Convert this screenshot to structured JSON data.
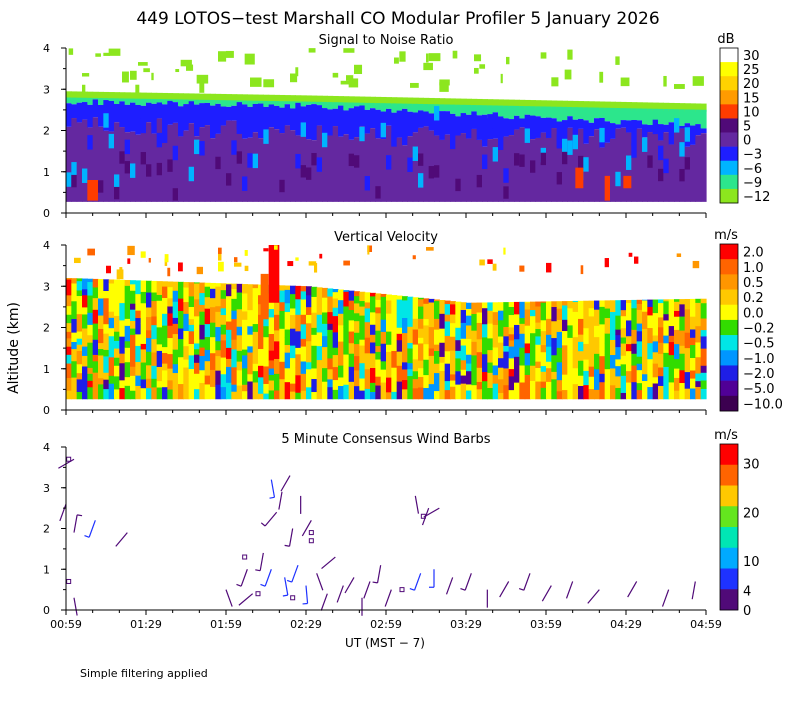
{
  "title": "449 LOTOS−test Marshall CO Modular Profiler  5 January 2026",
  "footnote": "Simple filtering applied",
  "ylabel": "Altitude (km)",
  "xlabel": "UT  (MST − 7)",
  "time_ticks": [
    "00:59",
    "01:29",
    "01:59",
    "02:29",
    "02:59",
    "03:29",
    "03:59",
    "04:29",
    "04:59"
  ],
  "chart_data": [
    {
      "type": "heatmap",
      "title": "Signal to Noise Ratio",
      "xlabel": "UT  (MST − 7)",
      "ylabel": "Altitude (km)",
      "x_range": [
        "00:59",
        "04:59"
      ],
      "ylim": [
        0,
        4
      ],
      "y_ticks": [
        0,
        1,
        2,
        3,
        4
      ],
      "colorbar": {
        "unit": "dB",
        "labels": [
          "30",
          "25",
          "20",
          "15",
          "10",
          "5",
          "0",
          "−3",
          "−6",
          "−9",
          "−12"
        ],
        "colors": [
          "#ffffff",
          "#ffff00",
          "#ffd200",
          "#ff9b00",
          "#ff3c00",
          "#500a78",
          "#6428a0",
          "#1e1eff",
          "#00b4ff",
          "#2ce68c",
          "#8ce61e"
        ]
      },
      "layers": [
        {
          "name": "noise floor top",
          "approx_top_km": {
            "00:59": 2.9,
            "02:29": 2.8,
            "04:59": 2.6
          }
        },
        {
          "name": "blue layer top",
          "approx_top_km": {
            "00:59": 2.7,
            "02:29": 2.6,
            "04:59": 2.1
          }
        },
        {
          "name": "purple layer top",
          "approx_top_km": {
            "00:59": 2.2,
            "02:29": 1.9,
            "04:59": 1.8
          }
        }
      ]
    },
    {
      "type": "heatmap",
      "title": "Vertical Velocity",
      "xlabel": "UT  (MST − 7)",
      "ylabel": "Altitude (km)",
      "x_range": [
        "00:59",
        "04:59"
      ],
      "ylim": [
        0,
        4
      ],
      "y_ticks": [
        0,
        1,
        2,
        3,
        4
      ],
      "colorbar": {
        "unit": "m/s",
        "labels": [
          "2.0",
          "1.0",
          "0.5",
          "0.2",
          "0.0",
          "−0.2",
          "−0.5",
          "−1.0",
          "−2.0",
          "−5.0",
          "−10.0"
        ],
        "colors": [
          "#ff0000",
          "#ff6400",
          "#ff9600",
          "#ffc800",
          "#ffff00",
          "#32dc00",
          "#00e6e6",
          "#0096ff",
          "#1e1ee6",
          "#500096",
          "#3c0050"
        ]
      },
      "approx_data_top_km": {
        "00:59": 3.2,
        "02:29": 3.0,
        "03:29": 2.6,
        "04:59": 2.7
      }
    },
    {
      "type": "scatter",
      "title": "5 Minute Consensus Wind Barbs",
      "xlabel": "UT  (MST − 7)",
      "ylabel": "Altitude (km)",
      "x_range": [
        "00:59",
        "04:59"
      ],
      "ylim": [
        0,
        4
      ],
      "y_ticks": [
        0,
        1,
        2,
        3,
        4
      ],
      "colorbar": {
        "unit": "m/s",
        "labels": [
          "30",
          "20",
          "10",
          "4",
          "0"
        ],
        "label_values": [
          30,
          20,
          10,
          4,
          0
        ],
        "vmax": 34,
        "colors": [
          "#ff0000",
          "#ff6400",
          "#ffc800",
          "#64e61e",
          "#00e6b4",
          "#00aaff",
          "#1e32ff",
          "#500a78"
        ]
      },
      "barbs": [
        {
          "t": "00:59",
          "z": 2.6,
          "speed": 0,
          "dir": 200
        },
        {
          "t": "01:02",
          "z": 3.7,
          "speed": 1,
          "dir": 240
        },
        {
          "t": "01:02",
          "z": 1.9,
          "speed": 4,
          "dir": 10
        },
        {
          "t": "01:02",
          "z": 0.3,
          "speed": 0,
          "dir": 170
        },
        {
          "t": "01:10",
          "z": 2.2,
          "speed": 8,
          "dir": 200
        },
        {
          "t": "01:22",
          "z": 1.9,
          "speed": 0,
          "dir": 220
        },
        {
          "t": "01:59",
          "z": 0.5,
          "speed": 0,
          "dir": 160
        },
        {
          "t": "02:07",
          "z": 1.0,
          "speed": 4,
          "dir": 200
        },
        {
          "t": "02:09",
          "z": 0.4,
          "speed": 0,
          "dir": 230
        },
        {
          "t": "02:13",
          "z": 1.4,
          "speed": 4,
          "dir": 190
        },
        {
          "t": "02:16",
          "z": 3.2,
          "speed": 7,
          "dir": 170
        },
        {
          "t": "02:16",
          "z": 1.0,
          "speed": 7,
          "dir": 200
        },
        {
          "t": "02:18",
          "z": 2.4,
          "speed": 4,
          "dir": 220
        },
        {
          "t": "02:20",
          "z": 2.9,
          "speed": 2,
          "dir": 190
        },
        {
          "t": "02:21",
          "z": 0.8,
          "speed": 5,
          "dir": 170
        },
        {
          "t": "02:23",
          "z": 3.3,
          "speed": 2,
          "dir": 210
        },
        {
          "t": "02:24",
          "z": 2.0,
          "speed": 4,
          "dir": 190
        },
        {
          "t": "02:26",
          "z": 1.1,
          "speed": 7,
          "dir": 200
        },
        {
          "t": "02:27",
          "z": 2.8,
          "speed": 1,
          "dir": 180
        },
        {
          "t": "02:29",
          "z": 0.6,
          "speed": 5,
          "dir": 175
        },
        {
          "t": "02:31",
          "z": 2.2,
          "speed": 0,
          "dir": 210
        },
        {
          "t": "02:33",
          "z": 0.9,
          "speed": 2,
          "dir": 160
        },
        {
          "t": "02:37",
          "z": 0.4,
          "speed": 0,
          "dir": 200
        },
        {
          "t": "02:40",
          "z": 1.3,
          "speed": 1,
          "dir": 230
        },
        {
          "t": "02:43",
          "z": 0.6,
          "speed": 1,
          "dir": 200
        },
        {
          "t": "02:47",
          "z": 0.8,
          "speed": 3,
          "dir": 210
        },
        {
          "t": "02:50",
          "z": 0.3,
          "speed": 2,
          "dir": 180
        },
        {
          "t": "02:53",
          "z": 0.7,
          "speed": 2,
          "dir": 200
        },
        {
          "t": "02:57",
          "z": 1.1,
          "speed": 4,
          "dir": 190
        },
        {
          "t": "03:01",
          "z": 0.5,
          "speed": 3,
          "dir": 200
        },
        {
          "t": "03:10",
          "z": 2.8,
          "speed": 3,
          "dir": 170
        },
        {
          "t": "03:12",
          "z": 0.9,
          "speed": 5,
          "dir": 200
        },
        {
          "t": "03:15",
          "z": 2.5,
          "speed": 1,
          "dir": 200
        },
        {
          "t": "03:17",
          "z": 1.0,
          "speed": 6,
          "dir": 180
        },
        {
          "t": "03:19",
          "z": 2.5,
          "speed": 1,
          "dir": 240
        },
        {
          "t": "03:24",
          "z": 0.8,
          "speed": 3,
          "dir": 200
        },
        {
          "t": "03:31",
          "z": 0.9,
          "speed": 4,
          "dir": 200
        },
        {
          "t": "03:37",
          "z": 0.5,
          "speed": 3,
          "dir": 180
        },
        {
          "t": "03:45",
          "z": 0.7,
          "speed": 2,
          "dir": 210
        },
        {
          "t": "03:53",
          "z": 0.9,
          "speed": 4,
          "dir": 200
        },
        {
          "t": "04:01",
          "z": 0.6,
          "speed": 2,
          "dir": 210
        },
        {
          "t": "04:09",
          "z": 0.7,
          "speed": 2,
          "dir": 200
        },
        {
          "t": "04:19",
          "z": 0.5,
          "speed": 1,
          "dir": 220
        },
        {
          "t": "04:33",
          "z": 0.7,
          "speed": 2,
          "dir": 210
        },
        {
          "t": "04:45",
          "z": 0.5,
          "speed": 2,
          "dir": 200
        },
        {
          "t": "04:55",
          "z": 0.7,
          "speed": 3,
          "dir": 190
        }
      ],
      "calm_points": [
        {
          "t": "01:00",
          "z": 3.7
        },
        {
          "t": "01:00",
          "z": 0.7
        },
        {
          "t": "02:06",
          "z": 1.3
        },
        {
          "t": "02:11",
          "z": 0.4
        },
        {
          "t": "02:24",
          "z": 0.3
        },
        {
          "t": "02:31",
          "z": 1.9
        },
        {
          "t": "02:31",
          "z": 1.7
        },
        {
          "t": "03:05",
          "z": 0.5
        },
        {
          "t": "03:13",
          "z": 2.3
        }
      ]
    }
  ]
}
